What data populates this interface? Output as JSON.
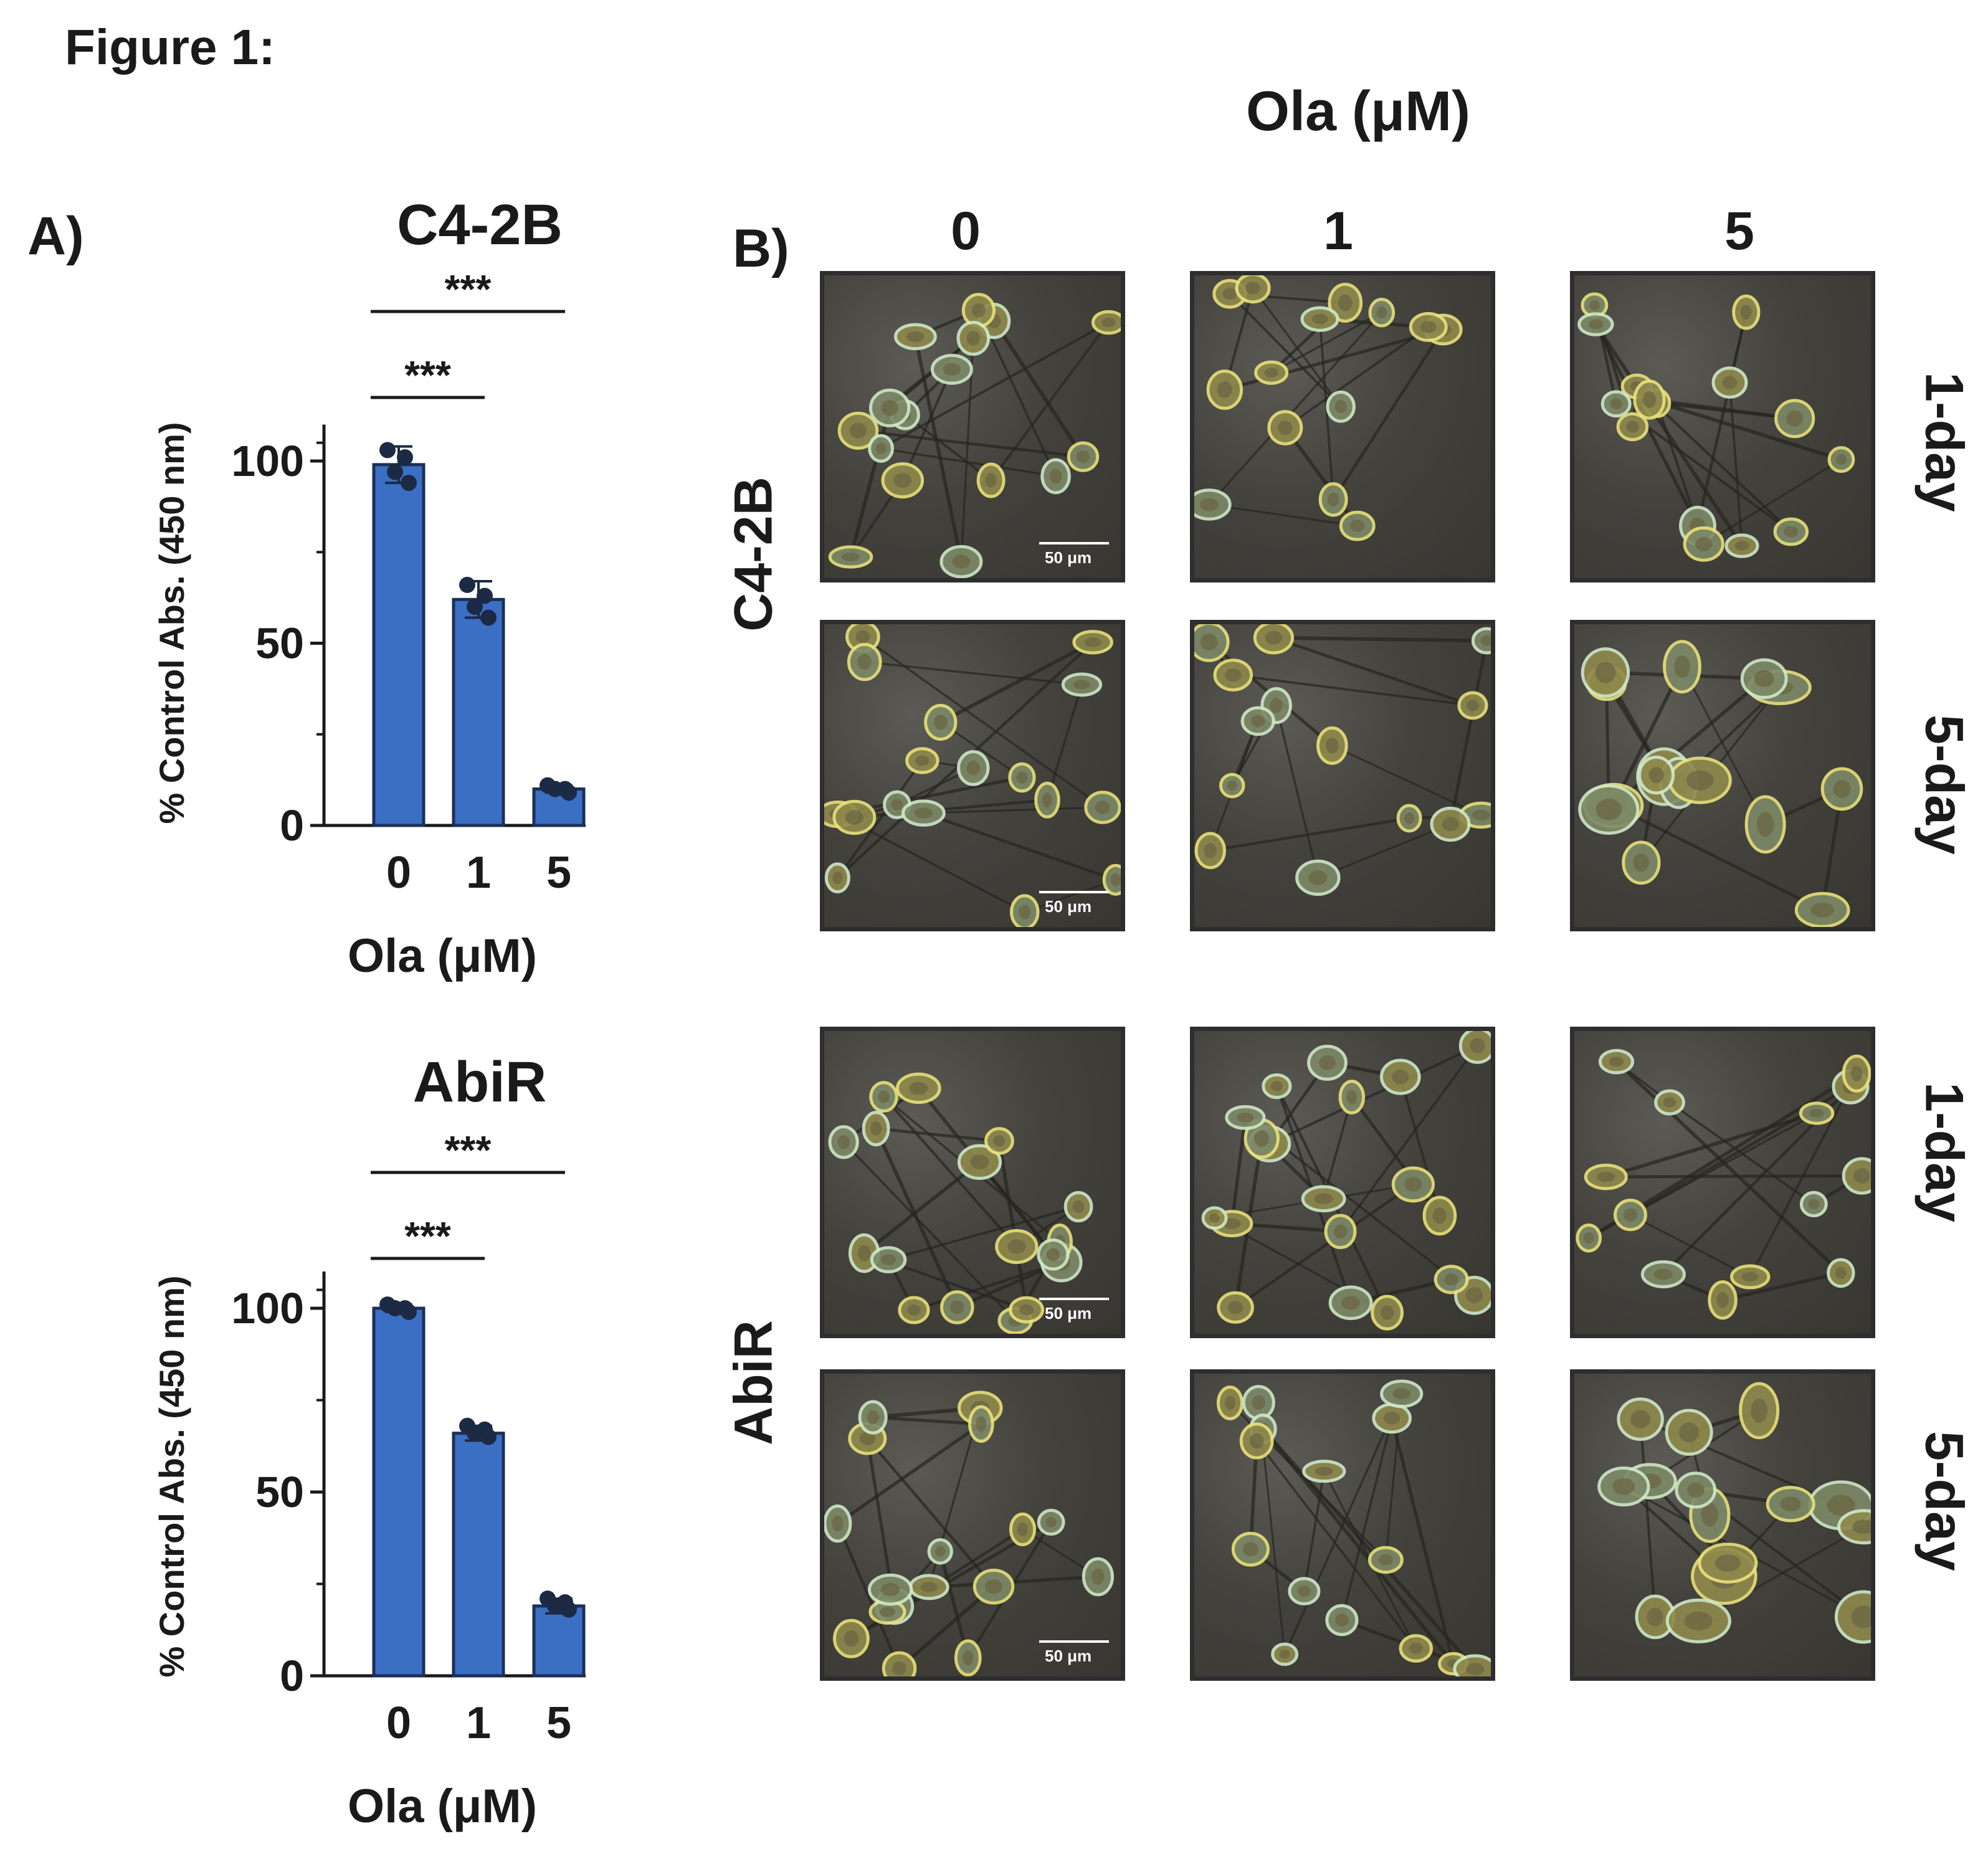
{
  "figure_title": "Figure 1:",
  "panel_labels": {
    "a": "A)",
    "b": "B)"
  },
  "colors": {
    "bar": "#3b6fc4",
    "bar_edge": "#1c2f57",
    "dot": "#1c2a44",
    "axis": "#1a1a1a"
  },
  "chart_data": [
    {
      "type": "bar",
      "title": "C4-2B",
      "categories": [
        "0",
        "1",
        "5"
      ],
      "values": [
        99,
        62,
        10
      ],
      "errors": [
        5,
        5,
        1
      ],
      "points": [
        [
          103,
          101,
          97,
          94
        ],
        [
          66,
          63,
          60,
          57
        ],
        [
          11,
          10,
          10,
          9
        ]
      ],
      "xlabel": "Ola (μM)",
      "ylabel": "% Control Abs. (450 nm)",
      "ylim": [
        0,
        110
      ],
      "yticks": [
        "0",
        "50",
        "100"
      ],
      "significance": [
        {
          "from": "0",
          "to": "1",
          "label": "***"
        },
        {
          "from": "0",
          "to": "5",
          "label": "***"
        }
      ]
    },
    {
      "type": "bar",
      "title": "AbiR",
      "categories": [
        "0",
        "1",
        "5"
      ],
      "values": [
        100,
        66,
        19
      ],
      "errors": [
        1,
        2,
        2
      ],
      "points": [
        [
          101,
          100,
          100,
          99
        ],
        [
          68,
          67,
          66,
          65
        ],
        [
          21,
          20,
          19,
          18
        ]
      ],
      "xlabel": "Ola (μM)",
      "ylabel": "% Control Abs. (450 nm)",
      "ylim": [
        0,
        110
      ],
      "yticks": [
        "0",
        "50",
        "100"
      ],
      "significance": [
        {
          "from": "0",
          "to": "1",
          "label": "***"
        },
        {
          "from": "0",
          "to": "5",
          "label": "***"
        }
      ]
    }
  ],
  "micrographs": {
    "header": "Ola (μM)",
    "columns": [
      "0",
      "1",
      "5"
    ],
    "cell_lines": [
      "C4-2B",
      "AbiR"
    ],
    "timepoints": [
      "1-day",
      "5-day"
    ],
    "scale_bar": "50 μm"
  }
}
